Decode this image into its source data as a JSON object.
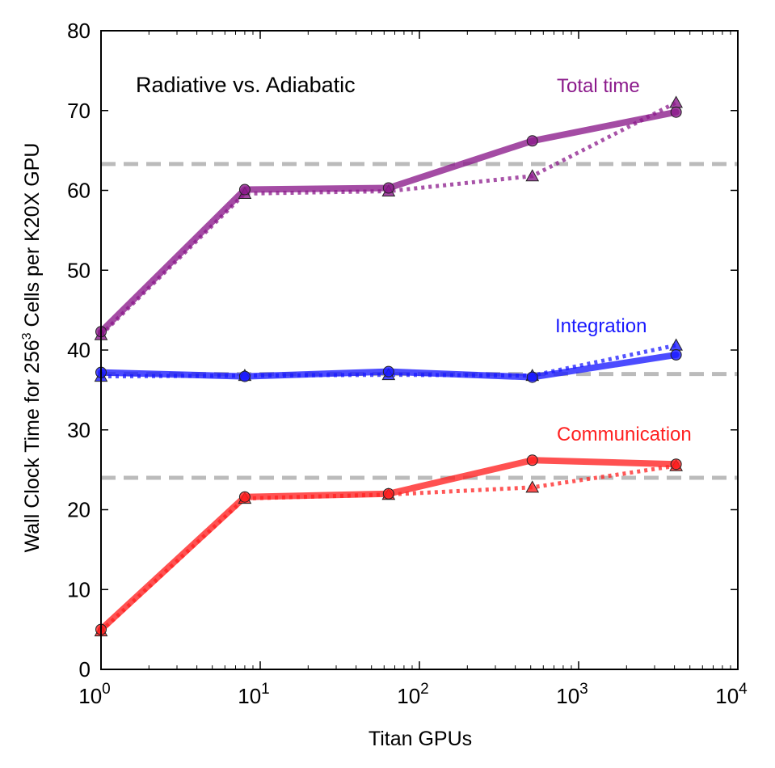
{
  "chart_data": {
    "type": "line",
    "title": "Radiative vs. Adiabatic",
    "xlabel": "Titan GPUs",
    "ylabel_prefix": "Wall Clock Time for 256",
    "ylabel_sup": "3",
    "ylabel_suffix": "  Cells per K20X GPU",
    "x_scale": "log",
    "xlim": [
      1,
      10000
    ],
    "ylim": [
      0,
      80
    ],
    "grid": false,
    "x_ticks": [
      {
        "value": 1,
        "base": "10",
        "exp": "0"
      },
      {
        "value": 10,
        "base": "10",
        "exp": "1"
      },
      {
        "value": 100,
        "base": "10",
        "exp": "2"
      },
      {
        "value": 1000,
        "base": "10",
        "exp": "3"
      },
      {
        "value": 10000,
        "base": "10",
        "exp": "4"
      }
    ],
    "y_ticks": [
      0,
      10,
      20,
      30,
      40,
      50,
      60,
      70,
      80
    ],
    "x": [
      1,
      8,
      64,
      512,
      4096
    ],
    "reference_lines": {
      "color": "#bbbbbb",
      "values": [
        63.3,
        37.0,
        24.0
      ]
    },
    "groups": [
      {
        "label": "Total time",
        "color": "#8b1a8b",
        "radiative": [
          42.3,
          60.1,
          60.3,
          66.2,
          69.8
        ],
        "adiabatic": [
          41.9,
          59.6,
          59.9,
          61.8,
          71.0
        ]
      },
      {
        "label": "Integration",
        "color": "#1a1aff",
        "radiative": [
          37.2,
          36.7,
          37.3,
          36.6,
          39.4
        ],
        "adiabatic": [
          36.7,
          36.8,
          36.9,
          36.8,
          40.6
        ]
      },
      {
        "label": "Communication",
        "color": "#ff2020",
        "radiative": [
          5.0,
          21.6,
          22.0,
          26.2,
          25.7
        ],
        "adiabatic": [
          4.8,
          21.4,
          21.9,
          22.8,
          25.5
        ]
      }
    ]
  }
}
